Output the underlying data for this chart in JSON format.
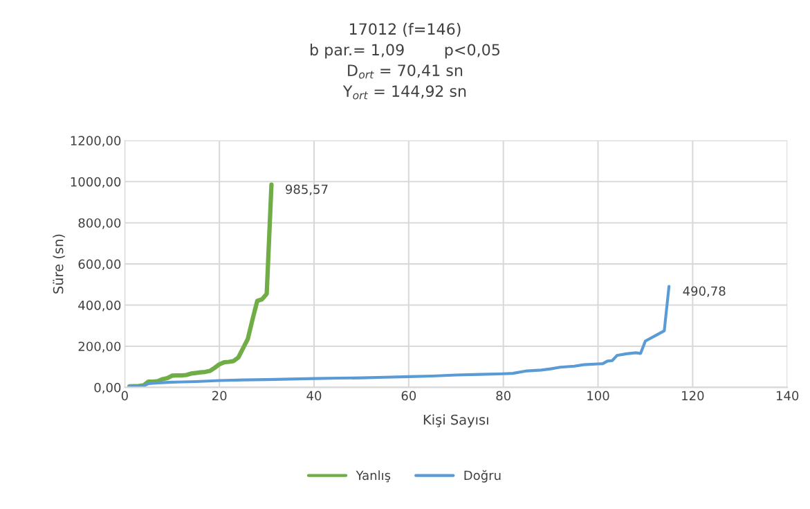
{
  "chart_data": {
    "type": "line",
    "title": "17012 (f=146)\nb par.= 1,09        p<0,05\nD$_{ort}$ = 70,41 sn\nY$_{ort}$ = 144,92 sn",
    "xlabel": "Kişi Sayısı",
    "ylabel": "Süre (sn)",
    "series": [
      {
        "name": "Yanlış",
        "color": "#70ad47",
        "x": [
          1,
          2,
          3,
          4,
          5,
          6,
          7,
          8,
          9,
          10,
          11,
          12,
          13,
          14,
          15,
          16,
          17,
          18,
          19,
          20,
          21,
          22,
          23,
          24,
          25,
          26,
          27,
          28,
          29,
          30,
          31
        ],
        "values": [
          5,
          6,
          7,
          10,
          28,
          28,
          30,
          40,
          45,
          57,
          58,
          58,
          60,
          67,
          70,
          73,
          75,
          80,
          95,
          112,
          122,
          124,
          128,
          145,
          190,
          235,
          330,
          420,
          428,
          455,
          985.57
        ]
      },
      {
        "name": "Doğru",
        "color": "#5b9bd5",
        "x": [
          1,
          3,
          4,
          5,
          7,
          10,
          15,
          20,
          25,
          30,
          35,
          40,
          45,
          50,
          55,
          60,
          65,
          70,
          75,
          80,
          82,
          85,
          88,
          90,
          92,
          95,
          97,
          100,
          101,
          102,
          103,
          104,
          106,
          108,
          109,
          110,
          112,
          114,
          115
        ],
        "values": [
          5,
          6,
          8,
          18,
          22,
          25,
          28,
          33,
          36,
          38,
          40,
          43,
          45,
          46,
          49,
          52,
          55,
          60,
          63,
          66,
          68,
          80,
          84,
          90,
          98,
          103,
          110,
          114,
          115,
          128,
          130,
          155,
          163,
          168,
          165,
          225,
          250,
          275,
          490.78
        ]
      }
    ],
    "annotations": [
      {
        "text": "985,57",
        "x": 31,
        "y": 985.57
      },
      {
        "text": "490,78",
        "x": 115,
        "y": 490.78
      }
    ],
    "xlim": [
      0,
      140
    ],
    "xticks": [
      0,
      20,
      40,
      60,
      80,
      100,
      120,
      140
    ],
    "ylim": [
      0,
      1200
    ],
    "yticks": [
      {
        "value": 0,
        "label": "0,00"
      },
      {
        "value": 200,
        "label": "200,00"
      },
      {
        "value": 400,
        "label": "400,00"
      },
      {
        "value": 600,
        "label": "600,00"
      },
      {
        "value": 800,
        "label": "800,00"
      },
      {
        "value": 1000,
        "label": "1000,00"
      },
      {
        "value": 1200,
        "label": "1200,00"
      }
    ],
    "grid": true,
    "legend": "bottom",
    "marker": "none",
    "line_style": "solid"
  }
}
